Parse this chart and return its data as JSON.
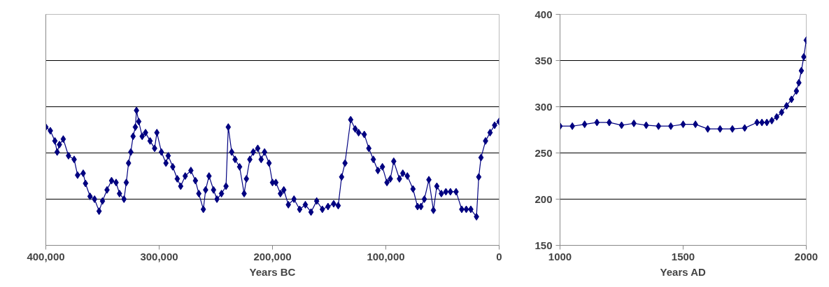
{
  "chart_data": [
    {
      "type": "line",
      "xlabel": "Years BC",
      "marker": "diamond",
      "line_style": "solid",
      "grid": "y",
      "tick_labels": "x",
      "xlim": [
        400000,
        0
      ],
      "xticks": [
        {
          "value": 400000,
          "label": "400,000"
        },
        {
          "value": 300000,
          "label": "300,000"
        },
        {
          "value": 200000,
          "label": "200,000"
        },
        {
          "value": 100000,
          "label": "100,000"
        },
        0
      ],
      "ylim": [
        150,
        400
      ],
      "yticks": [
        150,
        200,
        250,
        300,
        350,
        400
      ],
      "series": [
        {
          "color": "#000080",
          "x": [
            400000,
            396000,
            392000,
            390000,
            388000,
            384600,
            380000,
            375000,
            372000,
            367000,
            365000,
            361000,
            357000,
            353000,
            350000,
            346000,
            342000,
            338000,
            335000,
            331000,
            329000,
            327000,
            325000,
            323000,
            321000,
            320000,
            318000,
            315000,
            312000,
            308000,
            304000,
            302000,
            298000,
            294000,
            292000,
            288000,
            284000,
            281000,
            277000,
            272000,
            268000,
            265000,
            261000,
            259000,
            256000,
            252000,
            249000,
            245000,
            241000,
            239000,
            236000,
            233000,
            229000,
            225000,
            223000,
            220000,
            217000,
            213000,
            210000,
            207000,
            203000,
            200000,
            197000,
            193000,
            190000,
            186000,
            181000,
            176000,
            171000,
            166000,
            161000,
            156000,
            151000,
            146000,
            142000,
            139000,
            136000,
            131000,
            127000,
            124000,
            119000,
            115000,
            111000,
            107000,
            103000,
            99000,
            96000,
            93000,
            88000,
            85000,
            81000,
            76000,
            72000,
            69000,
            66000,
            62000,
            58000,
            55000,
            51000,
            47000,
            43000,
            38000,
            33000,
            29000,
            25000,
            20000,
            18000,
            16000,
            12000,
            8000,
            4000,
            0
          ],
          "values": [
            278,
            274,
            263,
            251,
            259,
            265,
            247,
            243,
            226,
            228,
            217,
            203,
            200,
            187,
            198,
            210,
            220,
            218,
            206,
            200,
            218,
            239,
            251,
            268,
            278,
            296,
            284,
            268,
            272,
            263,
            255,
            272,
            251,
            239,
            247,
            235,
            222,
            214,
            225,
            231,
            220,
            206,
            189,
            210,
            225,
            210,
            200,
            206,
            214,
            278,
            251,
            243,
            235,
            206,
            222,
            243,
            251,
            255,
            243,
            251,
            239,
            218,
            218,
            206,
            210,
            194,
            200,
            189,
            194,
            186,
            198,
            189,
            192,
            195,
            193,
            224,
            239,
            286,
            276,
            272,
            270,
            255,
            243,
            231,
            235,
            218,
            222,
            241,
            222,
            228,
            225,
            211,
            192,
            192,
            200,
            221,
            188,
            214,
            206,
            208,
            208,
            208,
            189,
            189,
            189,
            181,
            224,
            245,
            263,
            272,
            280,
            284
          ]
        }
      ]
    },
    {
      "type": "line",
      "xlabel": "Years AD",
      "marker": "diamond",
      "line_style": "solid",
      "grid": "y",
      "xlim": [
        1000,
        2000
      ],
      "xticks": [
        1000,
        1500,
        2000
      ],
      "ylim": [
        150,
        400
      ],
      "yticks": [
        150,
        200,
        250,
        300,
        350,
        400
      ],
      "series": [
        {
          "color": "#000080",
          "x": [
            1000,
            1050,
            1100,
            1150,
            1200,
            1250,
            1300,
            1350,
            1400,
            1450,
            1500,
            1550,
            1600,
            1650,
            1700,
            1750,
            1800,
            1820,
            1840,
            1860,
            1880,
            1900,
            1920,
            1940,
            1960,
            1970,
            1980,
            1990,
            2000
          ],
          "values": [
            279,
            279,
            281,
            283,
            283,
            280,
            282,
            280,
            279,
            279,
            281,
            281,
            276,
            276,
            276,
            277,
            283,
            283,
            283,
            285,
            289,
            294,
            301,
            308,
            317,
            326,
            339,
            354,
            372
          ]
        }
      ]
    }
  ]
}
